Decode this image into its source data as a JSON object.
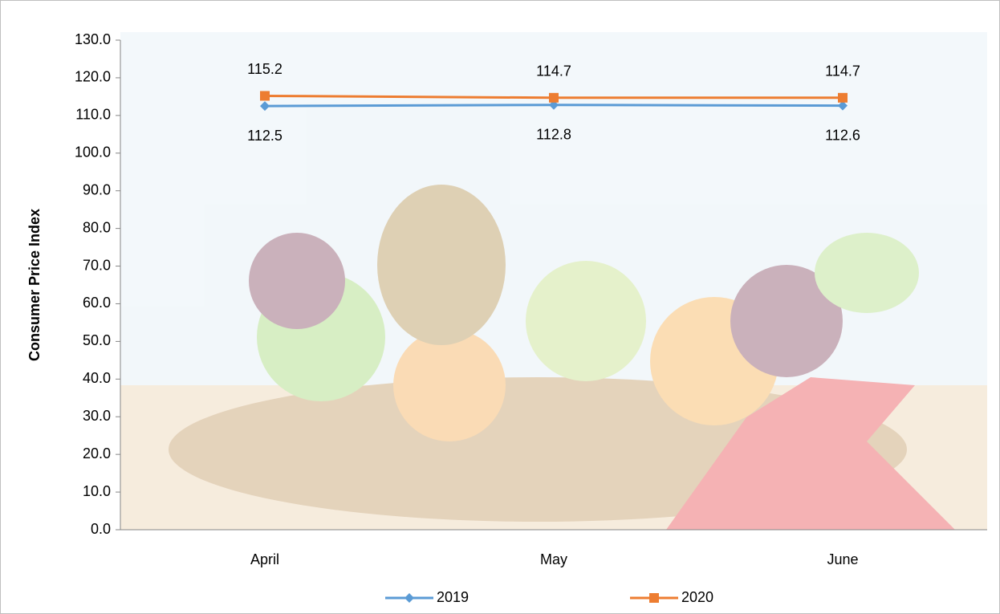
{
  "chart_data": {
    "type": "line",
    "y_label": "Consumer Price Index",
    "categories": [
      "April",
      "May",
      "June"
    ],
    "series": [
      {
        "name": "2019",
        "color": "#5b9bd5",
        "marker": "diamond",
        "values": [
          112.5,
          112.8,
          112.6
        ]
      },
      {
        "name": "2020",
        "color": "#ed7d31",
        "marker": "square",
        "values": [
          115.2,
          114.7,
          114.7
        ]
      }
    ],
    "ylim": [
      0,
      130
    ],
    "yticks": [
      {
        "value": 0,
        "label": "0.0"
      },
      {
        "value": 10,
        "label": "10.0"
      },
      {
        "value": 20,
        "label": "20.0"
      },
      {
        "value": 30,
        "label": "30.0"
      },
      {
        "value": 40,
        "label": "40.0"
      },
      {
        "value": 50,
        "label": "50.0"
      },
      {
        "value": 60,
        "label": "60.0"
      },
      {
        "value": 70,
        "label": "70.0"
      },
      {
        "value": 80,
        "label": "80.0"
      },
      {
        "value": 90,
        "label": "90.0"
      },
      {
        "value": 100,
        "label": "100.0"
      },
      {
        "value": 110,
        "label": "110.0"
      },
      {
        "value": 120,
        "label": "120.0"
      },
      {
        "value": 130,
        "label": "130.0"
      }
    ],
    "legend": "bottom"
  }
}
